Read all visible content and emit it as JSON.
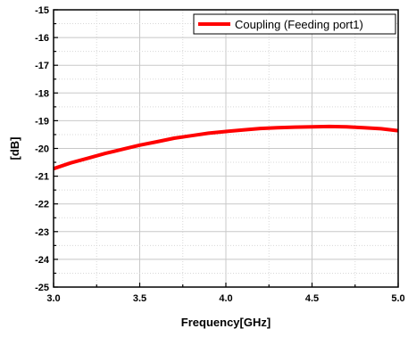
{
  "chart_data": {
    "type": "line",
    "title": "",
    "xlabel": "Frequency[GHz]",
    "ylabel": "[dB]",
    "xlim": [
      3.0,
      5.0
    ],
    "ylim": [
      -25,
      -15
    ],
    "xticks": [
      "3.0",
      "3.5",
      "4.0",
      "4.5",
      "5.0"
    ],
    "yticks": [
      "-25",
      "-24",
      "-23",
      "-22",
      "-21",
      "-20",
      "-19",
      "-18",
      "-17",
      "-16",
      "-15"
    ],
    "grid": true,
    "legend_position": "top-right",
    "series": [
      {
        "name": "Coupling (Feeding port1)",
        "color": "#ff0000",
        "x": [
          3.0,
          3.1,
          3.2,
          3.3,
          3.4,
          3.5,
          3.6,
          3.7,
          3.8,
          3.9,
          4.0,
          4.1,
          4.2,
          4.3,
          4.4,
          4.5,
          4.6,
          4.7,
          4.8,
          4.9,
          5.0
        ],
        "y": [
          -20.73,
          -20.52,
          -20.35,
          -20.18,
          -20.03,
          -19.88,
          -19.76,
          -19.63,
          -19.54,
          -19.45,
          -19.39,
          -19.33,
          -19.28,
          -19.25,
          -19.23,
          -19.22,
          -19.21,
          -19.22,
          -19.25,
          -19.29,
          -19.36
        ]
      }
    ]
  }
}
